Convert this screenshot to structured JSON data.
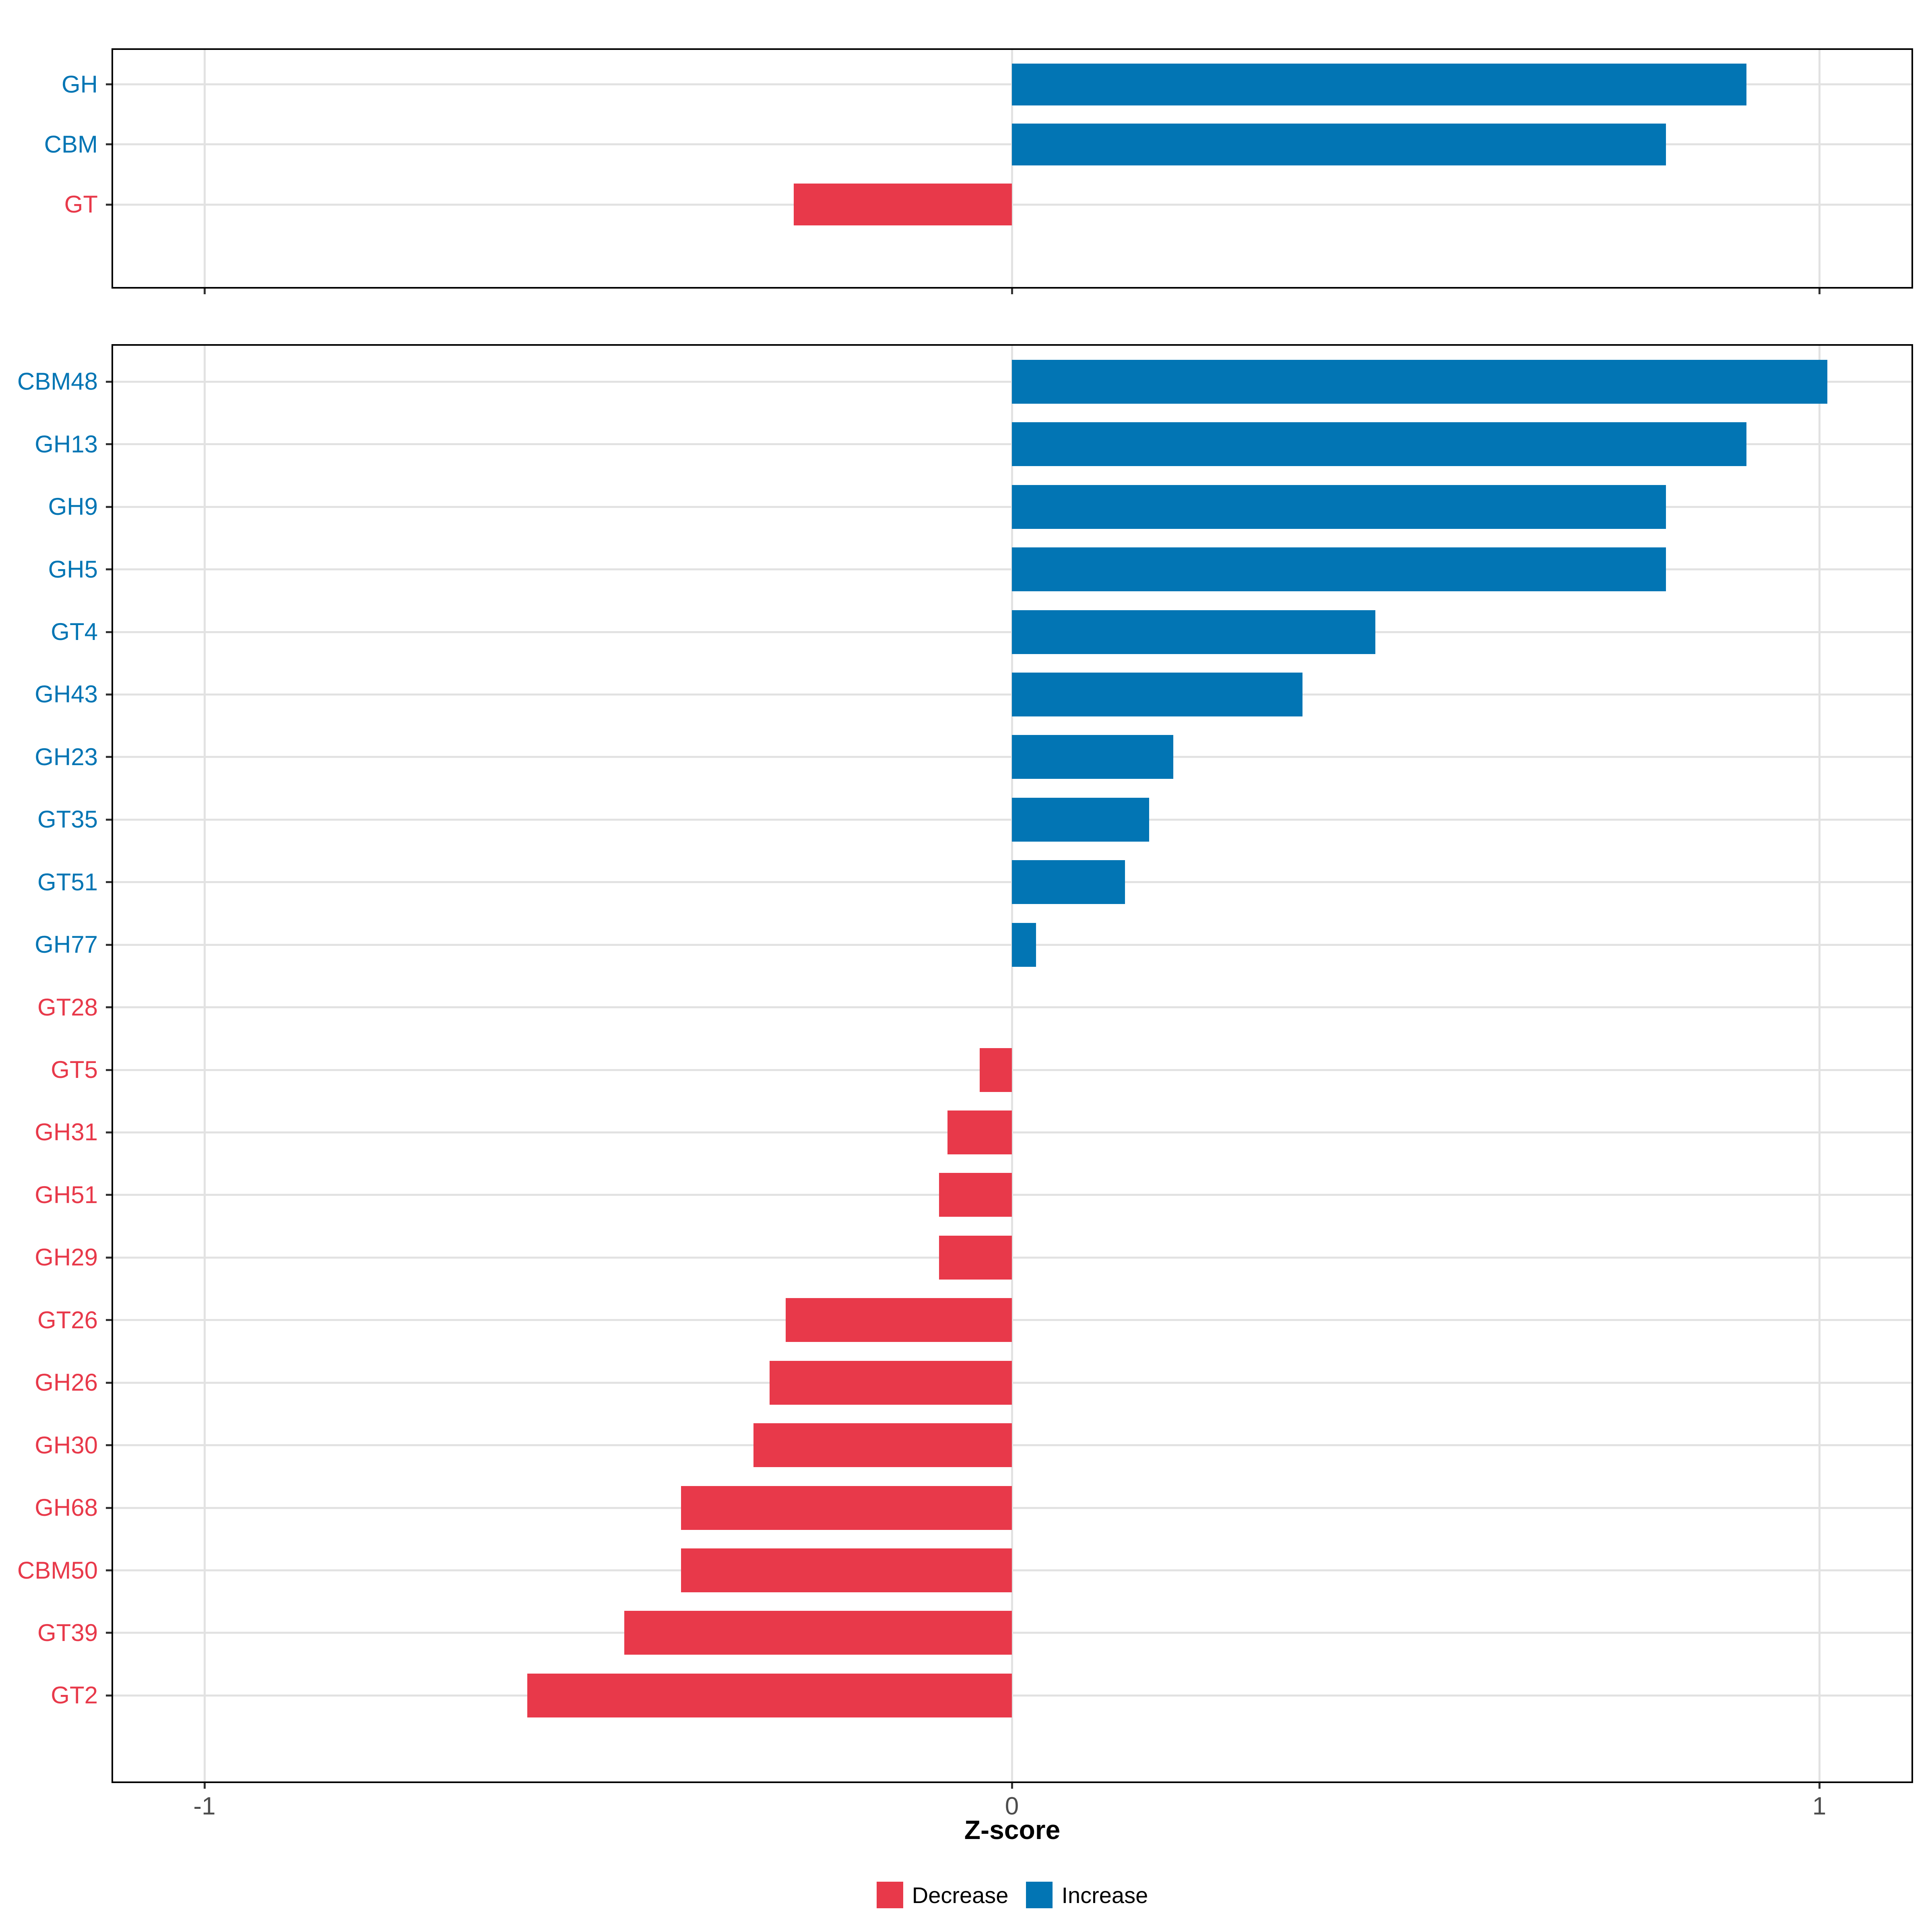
{
  "figure": {
    "xlabel": "Z-score",
    "x_tick_labels": [
      "-1",
      "0",
      "1"
    ],
    "legend": {
      "items": [
        {
          "label": "Decrease",
          "color": "#E8394A"
        },
        {
          "label": "Increase",
          "color": "#0275B4"
        }
      ]
    },
    "colors": {
      "increase": "#0275B4",
      "decrease": "#E8394A",
      "grid": "#E2E2E2",
      "panel_border": "#000000",
      "tick": "#333333",
      "tick_label": "#4D4D4D",
      "background": "#ffffff"
    }
  },
  "chart_data": [
    {
      "type": "bar",
      "orientation": "horizontal",
      "panel": "cazyme-classes",
      "title": "",
      "xlabel": "Z-score",
      "ylabel": "",
      "x_ticks": [
        -1,
        0,
        1
      ],
      "xlim": [
        -1.115,
        1.116
      ],
      "grid": "major",
      "categories": [
        "GH",
        "CBM",
        "GT"
      ],
      "values": [
        0.91,
        0.81,
        -0.27
      ],
      "directions": [
        "increase",
        "increase",
        "decrease"
      ]
    },
    {
      "type": "bar",
      "orientation": "horizontal",
      "panel": "cazyme-families",
      "title": "",
      "xlabel": "Z-score",
      "ylabel": "",
      "x_ticks": [
        -1,
        0,
        1
      ],
      "xlim": [
        -1.115,
        1.116
      ],
      "grid": "major",
      "categories": [
        "CBM48",
        "GH13",
        "GH9",
        "GH5",
        "GT4",
        "GH43",
        "GH23",
        "GT35",
        "GT51",
        "GH77",
        "GT28",
        "GT5",
        "GH31",
        "GH51",
        "GH29",
        "GT26",
        "GH26",
        "GH30",
        "GH68",
        "CBM50",
        "GT39",
        "GT2"
      ],
      "values": [
        1.01,
        0.91,
        0.81,
        0.81,
        0.45,
        0.36,
        0.2,
        0.17,
        0.14,
        0.03,
        0.0,
        -0.04,
        -0.08,
        -0.09,
        -0.09,
        -0.28,
        -0.3,
        -0.32,
        -0.41,
        -0.41,
        -0.48,
        -0.6
      ],
      "directions": [
        "increase",
        "increase",
        "increase",
        "increase",
        "increase",
        "increase",
        "increase",
        "increase",
        "increase",
        "increase",
        "decrease",
        "decrease",
        "decrease",
        "decrease",
        "decrease",
        "decrease",
        "decrease",
        "decrease",
        "decrease",
        "decrease",
        "decrease",
        "decrease"
      ]
    }
  ]
}
